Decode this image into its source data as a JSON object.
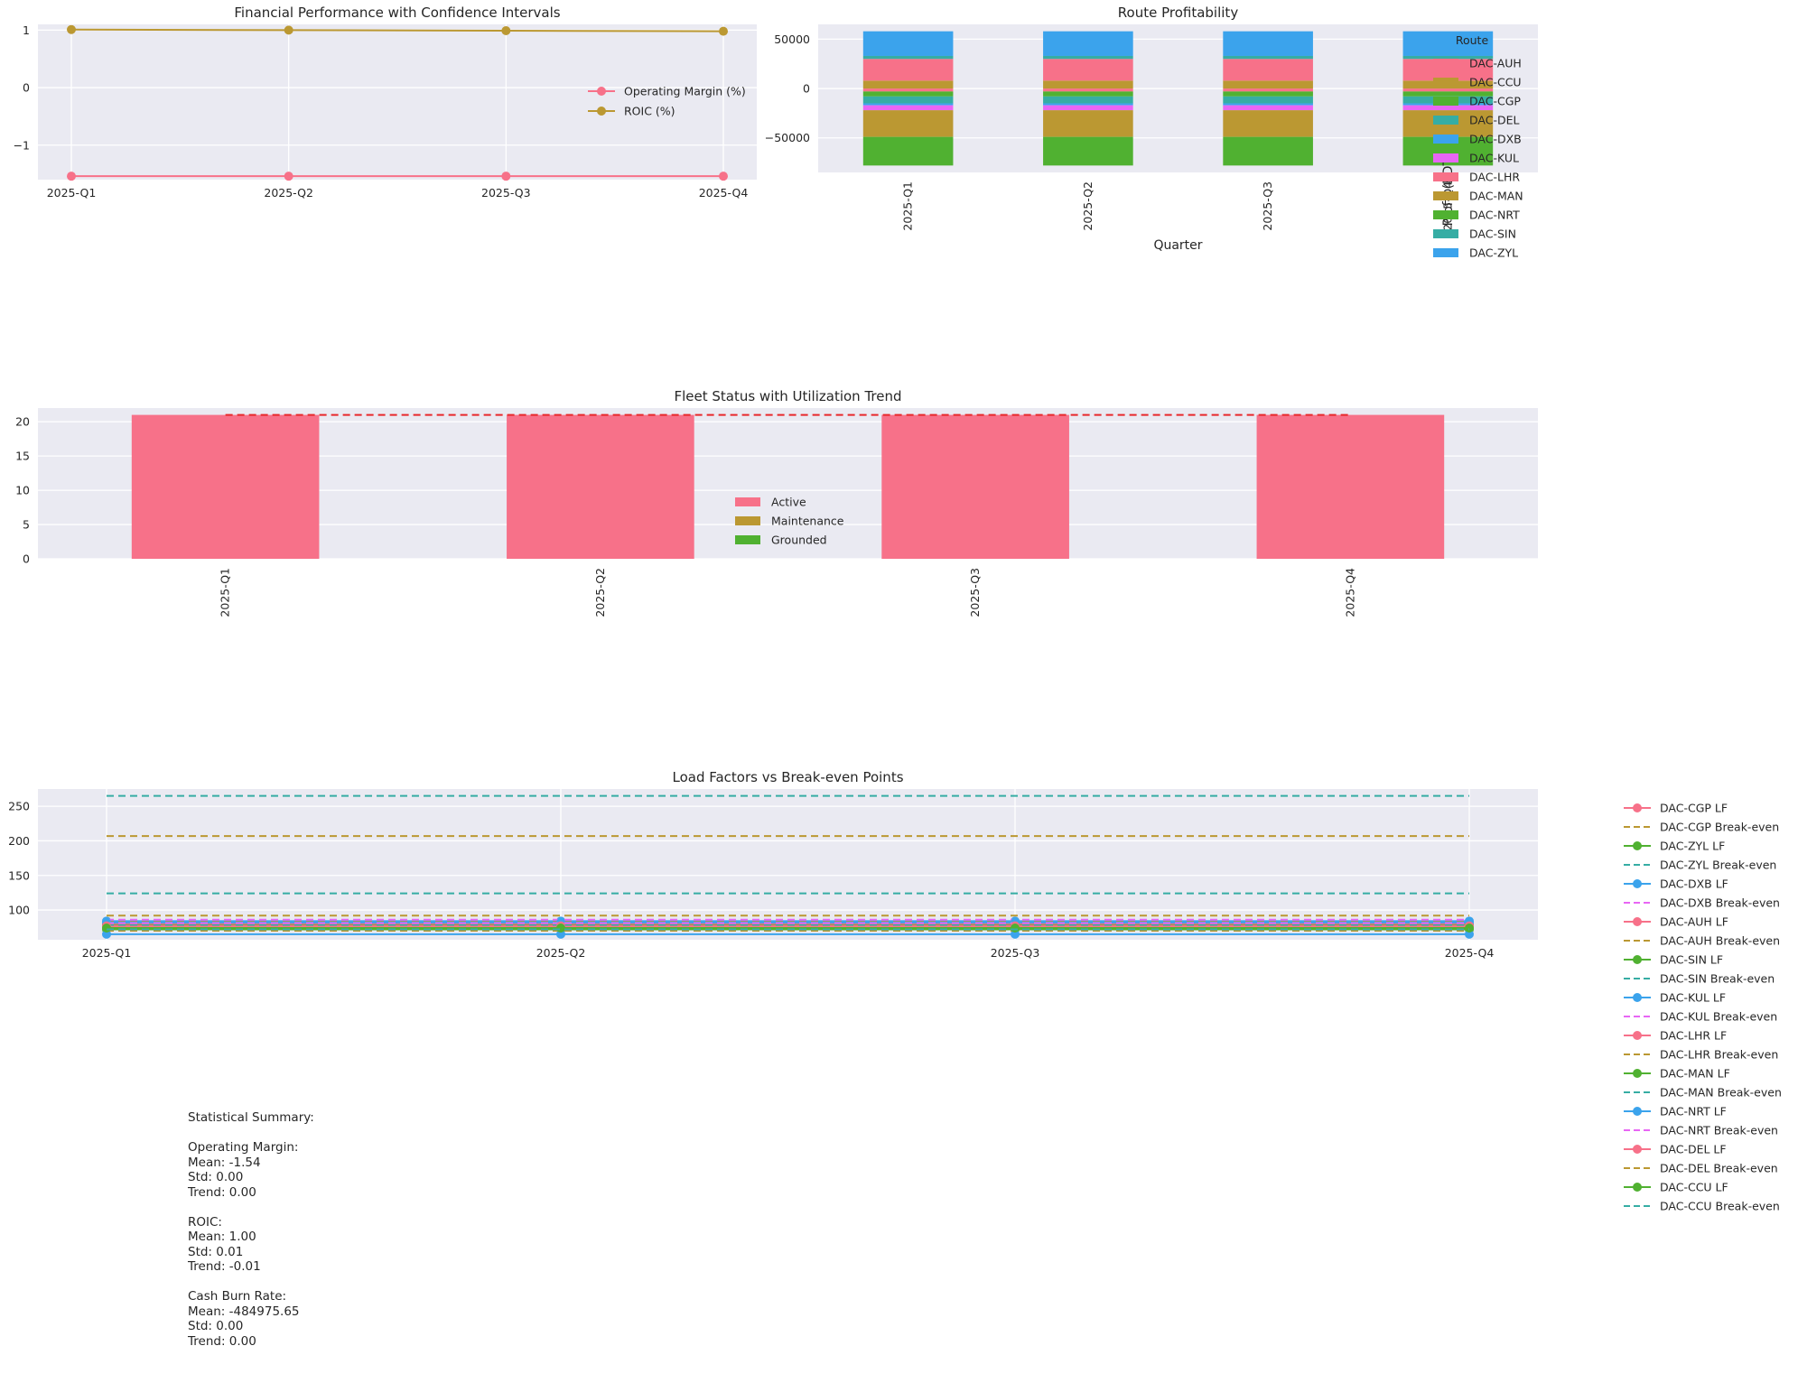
{
  "palette": {
    "pink": "#f77189",
    "olive": "#bb9832",
    "green": "#50b131",
    "teal": "#36ada4",
    "blue": "#3ba3ec",
    "magenta": "#e866f4",
    "red": "#e8282b",
    "panel_bg": "#eaeaf2",
    "grid": "#ffffff",
    "text": "#262626"
  },
  "chart_data": [
    {
      "id": "financial",
      "type": "line",
      "title": "Financial Performance with Confidence Intervals",
      "categories": [
        "2025-Q1",
        "2025-Q2",
        "2025-Q3",
        "2025-Q4"
      ],
      "ylim": [
        -1.6,
        1.1
      ],
      "yticks": [
        1,
        0,
        -1
      ],
      "ytick_labels": [
        "1",
        "0",
        "−1"
      ],
      "legend": "right",
      "series": [
        {
          "name": "Operating Margin (%)",
          "values": [
            -1.54,
            -1.54,
            -1.54,
            -1.54
          ],
          "color": "#f77189"
        },
        {
          "name": "ROIC (%)",
          "values": [
            1.01,
            1.0,
            0.99,
            0.98
          ],
          "color": "#bb9832"
        }
      ]
    },
    {
      "id": "route",
      "type": "bar",
      "stacked": true,
      "title": "Route Profitability",
      "xlabel": "Quarter",
      "ylabel": "Profit (BDT)",
      "categories": [
        "2025-Q1",
        "2025-Q2",
        "2025-Q3",
        "2025-Q4"
      ],
      "ylim": [
        -85000,
        65000
      ],
      "yticks": [
        50000,
        0,
        -50000
      ],
      "ytick_labels": [
        "50000",
        "0",
        "−50000"
      ],
      "legend_title": "Route",
      "legend": "top-right",
      "series": [
        {
          "name": "DAC-AUH",
          "values": [
            -3000,
            -3000,
            -3000,
            -3000
          ],
          "color": "#f77189"
        },
        {
          "name": "DAC-CCU",
          "values": [
            8000,
            8000,
            8000,
            8000
          ],
          "color": "#bb9832"
        },
        {
          "name": "DAC-CGP",
          "values": [
            -5000,
            -5000,
            -5000,
            -5000
          ],
          "color": "#50b131"
        },
        {
          "name": "DAC-DEL",
          "values": [
            -7000,
            -7000,
            -7000,
            -7000
          ],
          "color": "#36ada4"
        },
        {
          "name": "DAC-DXB",
          "values": [
            -2000,
            -2000,
            -2000,
            -2000
          ],
          "color": "#3ba3ec"
        },
        {
          "name": "DAC-KUL",
          "values": [
            -5000,
            -5000,
            -5000,
            -5000
          ],
          "color": "#e866f4"
        },
        {
          "name": "DAC-LHR",
          "values": [
            22000,
            22000,
            22000,
            22000
          ],
          "color": "#f77189"
        },
        {
          "name": "DAC-MAN",
          "values": [
            -27000,
            -27000,
            -27000,
            -27000
          ],
          "color": "#bb9832"
        },
        {
          "name": "DAC-NRT",
          "values": [
            -29000,
            -29000,
            -29000,
            -29000
          ],
          "color": "#50b131"
        },
        {
          "name": "DAC-SIN",
          "values": [
            3000,
            3000,
            3000,
            3000
          ],
          "color": "#36ada4"
        },
        {
          "name": "DAC-ZYL",
          "values": [
            25000,
            25000,
            25000,
            25000
          ],
          "color": "#3ba3ec"
        }
      ]
    },
    {
      "id": "fleet",
      "type": "bar",
      "stacked": true,
      "title": "Fleet Status with Utilization Trend",
      "categories": [
        "2025-Q1",
        "2025-Q2",
        "2025-Q3",
        "2025-Q4"
      ],
      "ylim": [
        0,
        22
      ],
      "yticks": [
        0,
        5,
        10,
        15,
        20
      ],
      "legend": "center",
      "series": [
        {
          "name": "Active",
          "values": [
            21,
            21,
            21,
            21
          ],
          "color": "#f77189"
        },
        {
          "name": "Maintenance",
          "values": [
            0,
            0,
            0,
            0
          ],
          "color": "#bb9832"
        },
        {
          "name": "Grounded",
          "values": [
            0,
            0,
            0,
            0
          ],
          "color": "#50b131"
        }
      ],
      "trend": {
        "values": [
          21,
          21,
          21,
          21
        ],
        "color": "#e8282b",
        "style": "dashed"
      }
    },
    {
      "id": "load",
      "type": "line",
      "title": "Load Factors vs Break-even Points",
      "categories": [
        "2025-Q1",
        "2025-Q2",
        "2025-Q3",
        "2025-Q4"
      ],
      "ylim": [
        57,
        275
      ],
      "yticks": [
        100,
        150,
        200,
        250
      ],
      "legend": "outside-right",
      "series": [
        {
          "name": "DAC-CGP LF",
          "values": [
            79,
            79,
            79,
            79
          ],
          "color": "#f77189",
          "style": "solid-marker"
        },
        {
          "name": "DAC-CGP Break-even",
          "values": [
            92,
            92,
            92,
            92
          ],
          "color": "#bb9832",
          "style": "dashed"
        },
        {
          "name": "DAC-ZYL LF",
          "values": [
            75,
            75,
            75,
            75
          ],
          "color": "#50b131",
          "style": "solid-marker"
        },
        {
          "name": "DAC-ZYL Break-even",
          "values": [
            265,
            265,
            265,
            265
          ],
          "color": "#36ada4",
          "style": "dashed"
        },
        {
          "name": "DAC-DXB LF",
          "values": [
            84,
            84,
            84,
            84
          ],
          "color": "#3ba3ec",
          "style": "solid-marker"
        },
        {
          "name": "DAC-DXB Break-even",
          "values": [
            86,
            86,
            86,
            86
          ],
          "color": "#e866f4",
          "style": "dashed"
        },
        {
          "name": "DAC-AUH LF",
          "values": [
            80,
            80,
            80,
            80
          ],
          "color": "#f77189",
          "style": "solid-marker"
        },
        {
          "name": "DAC-AUH Break-even",
          "values": [
            83,
            83,
            83,
            83
          ],
          "color": "#bb9832",
          "style": "dashed"
        },
        {
          "name": "DAC-SIN LF",
          "values": [
            78,
            78,
            78,
            78
          ],
          "color": "#50b131",
          "style": "solid-marker"
        },
        {
          "name": "DAC-SIN Break-even",
          "values": [
            124,
            124,
            124,
            124
          ],
          "color": "#36ada4",
          "style": "dashed"
        },
        {
          "name": "DAC-KUL LF",
          "values": [
            82,
            82,
            82,
            82
          ],
          "color": "#3ba3ec",
          "style": "solid-marker"
        },
        {
          "name": "DAC-KUL Break-even",
          "values": [
            81,
            81,
            81,
            81
          ],
          "color": "#e866f4",
          "style": "dashed"
        },
        {
          "name": "DAC-LHR LF",
          "values": [
            77,
            77,
            77,
            77
          ],
          "color": "#f77189",
          "style": "solid-marker"
        },
        {
          "name": "DAC-LHR Break-even",
          "values": [
            207,
            207,
            207,
            207
          ],
          "color": "#bb9832",
          "style": "dashed"
        },
        {
          "name": "DAC-MAN LF",
          "values": [
            72,
            72,
            72,
            72
          ],
          "color": "#50b131",
          "style": "solid-marker"
        },
        {
          "name": "DAC-MAN Break-even",
          "values": [
            78,
            78,
            78,
            78
          ],
          "color": "#36ada4",
          "style": "dashed"
        },
        {
          "name": "DAC-NRT LF",
          "values": [
            65,
            65,
            65,
            65
          ],
          "color": "#3ba3ec",
          "style": "solid-marker"
        },
        {
          "name": "DAC-NRT Break-even",
          "values": [
            74,
            74,
            74,
            74
          ],
          "color": "#e866f4",
          "style": "dashed"
        },
        {
          "name": "DAC-DEL LF",
          "values": [
            76,
            76,
            76,
            76
          ],
          "color": "#f77189",
          "style": "solid-marker"
        },
        {
          "name": "DAC-DEL Break-even",
          "values": [
            70,
            70,
            70,
            70
          ],
          "color": "#bb9832",
          "style": "dashed"
        },
        {
          "name": "DAC-CCU LF",
          "values": [
            74,
            74,
            74,
            74
          ],
          "color": "#50b131",
          "style": "solid-marker"
        },
        {
          "name": "DAC-CCU Break-even",
          "values": [
            72,
            72,
            72,
            72
          ],
          "color": "#36ada4",
          "style": "dashed"
        }
      ]
    }
  ],
  "summary": {
    "text": "Statistical Summary:\n\nOperating Margin:\nMean: -1.54\nStd: 0.00\nTrend: 0.00\n\nROIC:\nMean: 1.00\nStd: 0.01\nTrend: -0.01\n\nCash Burn Rate:\nMean: -484975.65\nStd: 0.00\nTrend: 0.00"
  }
}
